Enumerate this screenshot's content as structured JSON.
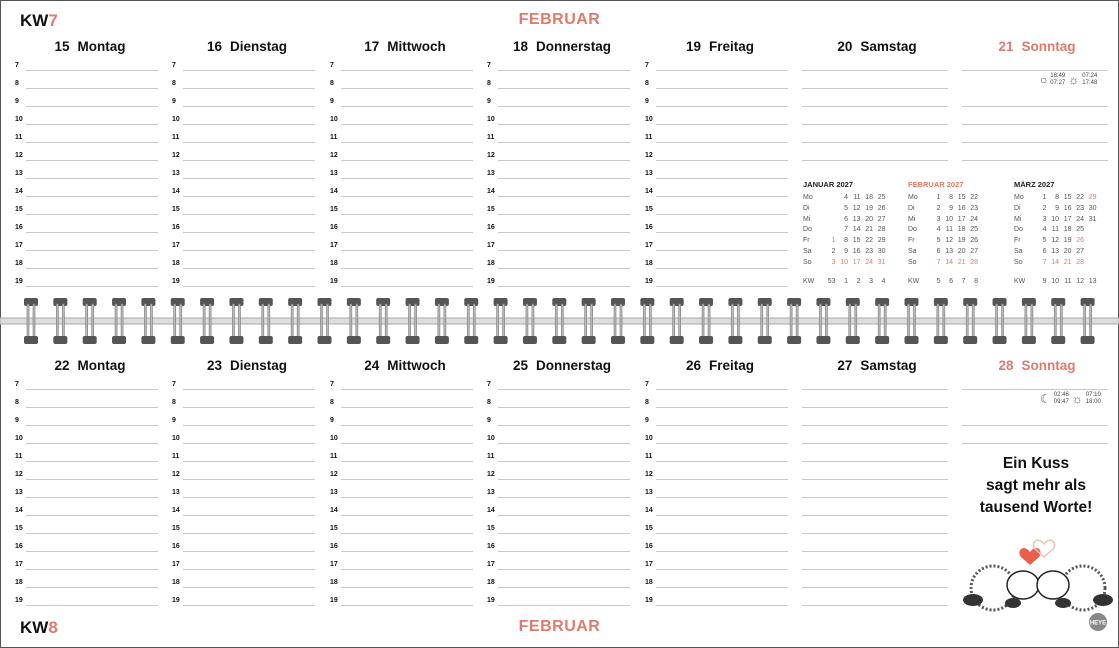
{
  "accent_color": "#e07a6a",
  "top": {
    "kw_label": "KW",
    "kw_number": "7",
    "month": "FEBRUAR",
    "days": [
      {
        "num": "15",
        "name": "Montag"
      },
      {
        "num": "16",
        "name": "Dienstag"
      },
      {
        "num": "17",
        "name": "Mittwoch"
      },
      {
        "num": "18",
        "name": "Donnerstag"
      },
      {
        "num": "19",
        "name": "Freitag"
      },
      {
        "num": "20",
        "name": "Samstag"
      },
      {
        "num": "21",
        "name": "Sonntag"
      }
    ],
    "sun_moon": {
      "moon_icon": "full-moon-icon",
      "moon_rise": "18:49",
      "moon_set": "07:27",
      "sun_rise": "07:24",
      "sun_set": "17:48"
    }
  },
  "bottom": {
    "kw_label": "KW",
    "kw_number": "8",
    "month": "FEBRUAR",
    "days": [
      {
        "num": "22",
        "name": "Montag"
      },
      {
        "num": "23",
        "name": "Dienstag"
      },
      {
        "num": "24",
        "name": "Mittwoch"
      },
      {
        "num": "25",
        "name": "Donnerstag"
      },
      {
        "num": "26",
        "name": "Freitag"
      },
      {
        "num": "27",
        "name": "Samstag"
      },
      {
        "num": "28",
        "name": "Sonntag"
      }
    ],
    "sun_moon": {
      "moon_icon": "crescent-moon-icon",
      "moon_rise": "02:46",
      "moon_set": "09:47",
      "sun_rise": "07:10",
      "sun_set": "18:00"
    },
    "quote": [
      "Ein Kuss",
      "sagt mehr als",
      "tausend Worte!"
    ],
    "logo": "HEYE"
  },
  "hours": [
    "7",
    "8",
    "9",
    "10",
    "11",
    "12",
    "13",
    "14",
    "15",
    "16",
    "17",
    "18",
    "19"
  ],
  "mini_calendars": [
    {
      "title": "JANUAR 2027",
      "current": false,
      "rows": [
        {
          "d": "Mo",
          "v": [
            "",
            "4",
            "11",
            "18",
            "25"
          ]
        },
        {
          "d": "Di",
          "v": [
            "",
            "5",
            "12",
            "19",
            "26"
          ]
        },
        {
          "d": "Mi",
          "v": [
            "",
            "6",
            "13",
            "20",
            "27"
          ]
        },
        {
          "d": "Do",
          "v": [
            "",
            "7",
            "14",
            "21",
            "28"
          ]
        },
        {
          "d": "Fr",
          "v": [
            "1",
            "8",
            "15",
            "22",
            "29"
          ]
        },
        {
          "d": "Sa",
          "v": [
            "2",
            "9",
            "16",
            "23",
            "30"
          ]
        },
        {
          "d": "So",
          "v": [
            "3",
            "10",
            "17",
            "24",
            "31"
          ]
        }
      ],
      "highlight": [
        "Fr:1",
        "So:3",
        "So:10",
        "So:17",
        "So:24",
        "So:31"
      ],
      "kw_label": "KW",
      "kw": [
        "53",
        "1",
        "2",
        "3",
        "4"
      ]
    },
    {
      "title": "FEBRUAR 2027",
      "current": true,
      "rows": [
        {
          "d": "Mo",
          "v": [
            "1",
            "8",
            "15",
            "22"
          ]
        },
        {
          "d": "Di",
          "v": [
            "2",
            "9",
            "16",
            "23"
          ]
        },
        {
          "d": "Mi",
          "v": [
            "3",
            "10",
            "17",
            "24"
          ]
        },
        {
          "d": "Do",
          "v": [
            "4",
            "11",
            "18",
            "25"
          ]
        },
        {
          "d": "Fr",
          "v": [
            "5",
            "12",
            "19",
            "26"
          ]
        },
        {
          "d": "Sa",
          "v": [
            "6",
            "13",
            "20",
            "27"
          ]
        },
        {
          "d": "So",
          "v": [
            "7",
            "14",
            "21",
            "28"
          ]
        }
      ],
      "highlight": [
        "So:7",
        "So:14",
        "So:21",
        "So:28"
      ],
      "kw_label": "KW",
      "kw": [
        "5",
        "6",
        "7",
        "8"
      ]
    },
    {
      "title": "MÄRZ 2027",
      "current": false,
      "rows": [
        {
          "d": "Mo",
          "v": [
            "1",
            "8",
            "15",
            "22",
            "29"
          ]
        },
        {
          "d": "Di",
          "v": [
            "2",
            "9",
            "16",
            "23",
            "30"
          ]
        },
        {
          "d": "Mi",
          "v": [
            "3",
            "10",
            "17",
            "24",
            "31"
          ]
        },
        {
          "d": "Do",
          "v": [
            "4",
            "11",
            "18",
            "25"
          ]
        },
        {
          "d": "Fr",
          "v": [
            "5",
            "12",
            "19",
            "26"
          ]
        },
        {
          "d": "Sa",
          "v": [
            "6",
            "13",
            "20",
            "27"
          ]
        },
        {
          "d": "So",
          "v": [
            "7",
            "14",
            "21",
            "28"
          ]
        }
      ],
      "highlight": [
        "Mo:29",
        "Fr:26",
        "So:7",
        "So:14",
        "So:21",
        "So:28"
      ],
      "kw_label": "KW",
      "kw": [
        "9",
        "10",
        "11",
        "12",
        "13"
      ]
    }
  ]
}
